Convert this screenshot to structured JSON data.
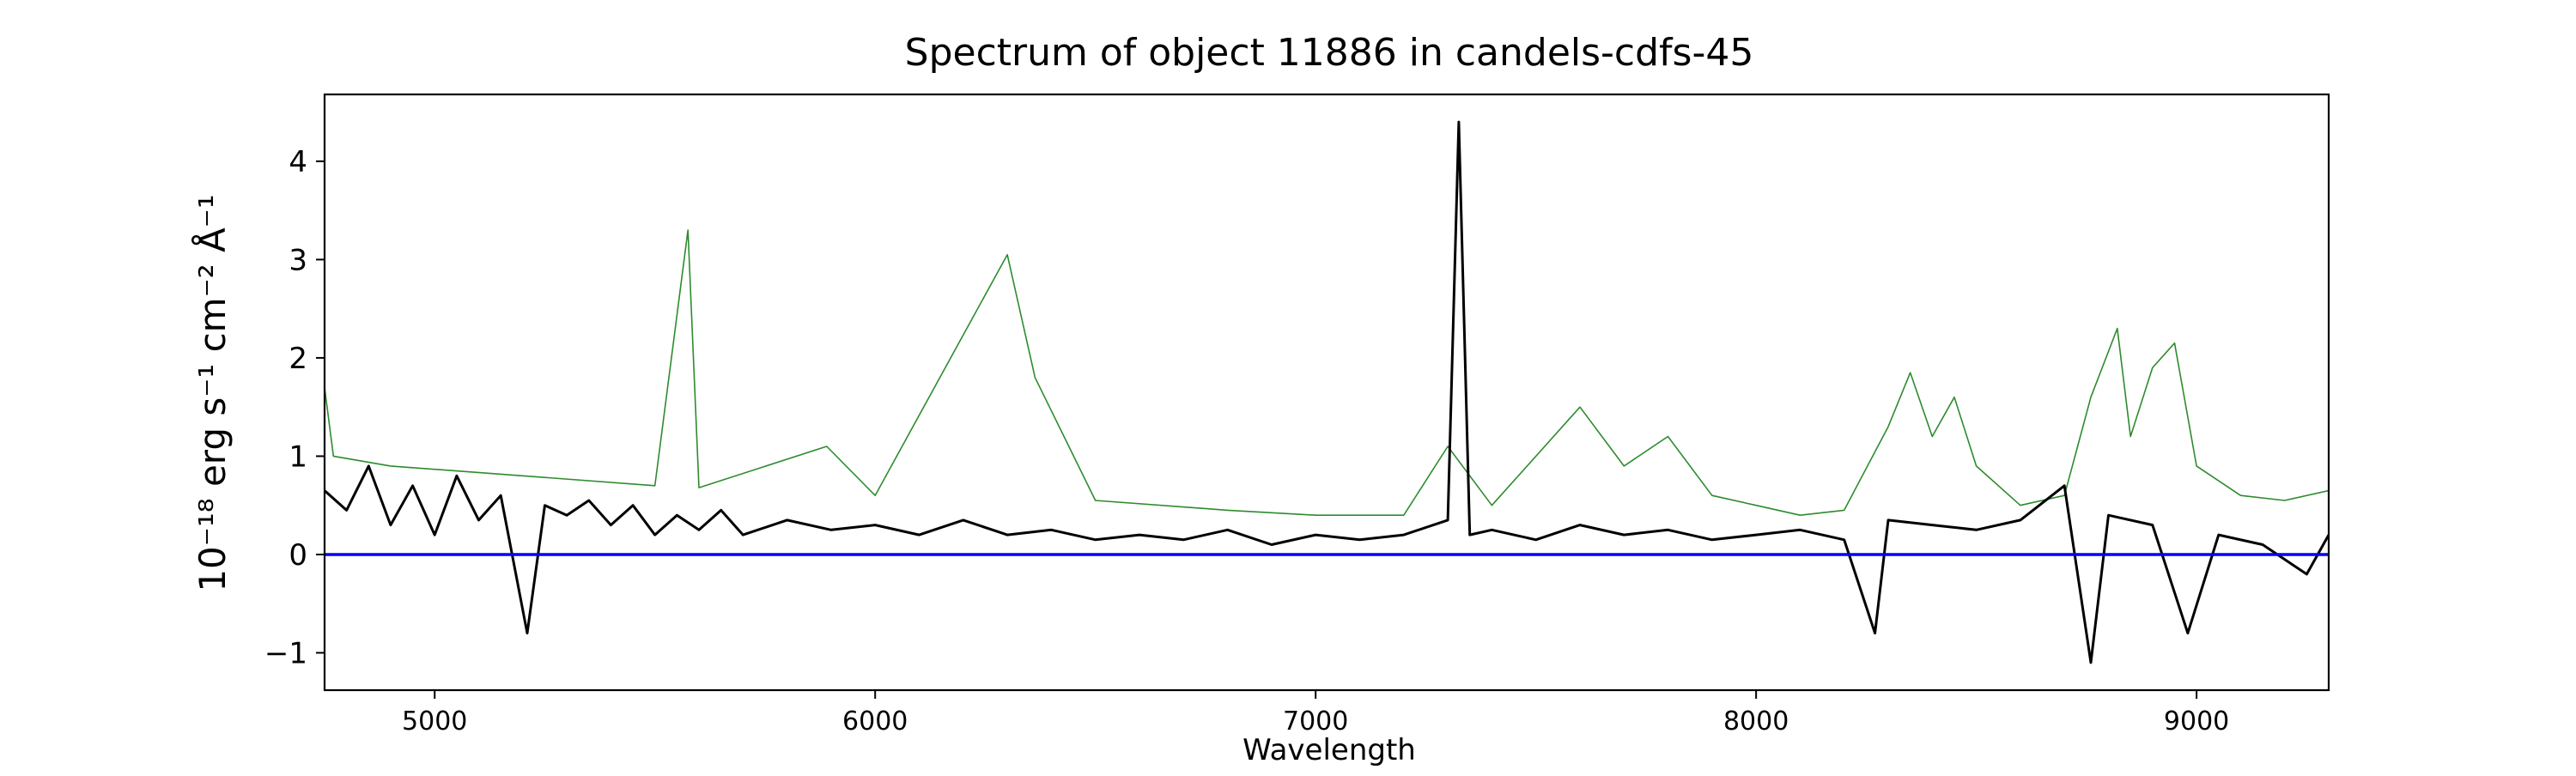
{
  "chart_data": {
    "type": "line",
    "title": "Spectrum of object 11886 in candels-cdfs-45",
    "xlabel": "Wavelength",
    "ylabel": "10⁻¹⁸ erg s⁻¹ cm⁻² Å⁻¹",
    "xlim": [
      4750,
      9300
    ],
    "ylim": [
      -1.38,
      4.68
    ],
    "x_ticks": [
      5000,
      6000,
      7000,
      8000,
      9000
    ],
    "y_ticks": [
      -1,
      0,
      1,
      2,
      3,
      4
    ],
    "grid": false,
    "series": [
      {
        "color": "#000000",
        "values": [
          [
            4750,
            0.65
          ],
          [
            4800,
            0.45
          ],
          [
            4850,
            0.9
          ],
          [
            4900,
            0.3
          ],
          [
            4950,
            0.7
          ],
          [
            5000,
            0.2
          ],
          [
            5050,
            0.8
          ],
          [
            5100,
            0.35
          ],
          [
            5150,
            0.6
          ],
          [
            5210,
            -0.8
          ],
          [
            5250,
            0.5
          ],
          [
            5300,
            0.4
          ],
          [
            5350,
            0.55
          ],
          [
            5400,
            0.3
          ],
          [
            5450,
            0.5
          ],
          [
            5500,
            0.2
          ],
          [
            5550,
            0.4
          ],
          [
            5600,
            0.25
          ],
          [
            5650,
            0.45
          ],
          [
            5700,
            0.2
          ],
          [
            5800,
            0.35
          ],
          [
            5900,
            0.25
          ],
          [
            6000,
            0.3
          ],
          [
            6100,
            0.2
          ],
          [
            6200,
            0.35
          ],
          [
            6300,
            0.2
          ],
          [
            6400,
            0.25
          ],
          [
            6500,
            0.15
          ],
          [
            6600,
            0.2
          ],
          [
            6700,
            0.15
          ],
          [
            6800,
            0.25
          ],
          [
            6900,
            0.1
          ],
          [
            7000,
            0.2
          ],
          [
            7100,
            0.15
          ],
          [
            7200,
            0.2
          ],
          [
            7300,
            0.35
          ],
          [
            7325,
            4.4
          ],
          [
            7350,
            0.2
          ],
          [
            7400,
            0.25
          ],
          [
            7500,
            0.15
          ],
          [
            7600,
            0.3
          ],
          [
            7700,
            0.2
          ],
          [
            7800,
            0.25
          ],
          [
            7900,
            0.15
          ],
          [
            8000,
            0.2
          ],
          [
            8100,
            0.25
          ],
          [
            8200,
            0.15
          ],
          [
            8270,
            -0.8
          ],
          [
            8300,
            0.35
          ],
          [
            8400,
            0.3
          ],
          [
            8500,
            0.25
          ],
          [
            8600,
            0.35
          ],
          [
            8700,
            0.7
          ],
          [
            8760,
            -1.1
          ],
          [
            8800,
            0.4
          ],
          [
            8900,
            0.3
          ],
          [
            8980,
            -0.8
          ],
          [
            9050,
            0.2
          ],
          [
            9150,
            0.1
          ],
          [
            9250,
            -0.2
          ],
          [
            9300,
            0.2
          ]
        ]
      },
      {
        "color": "#2e8b2e",
        "values": [
          [
            4750,
            1.7
          ],
          [
            4770,
            1.0
          ],
          [
            4900,
            0.9
          ],
          [
            5200,
            0.8
          ],
          [
            5500,
            0.7
          ],
          [
            5575,
            3.3
          ],
          [
            5600,
            0.68
          ],
          [
            5890,
            1.1
          ],
          [
            6000,
            0.6
          ],
          [
            6300,
            3.05
          ],
          [
            6363,
            1.8
          ],
          [
            6500,
            0.55
          ],
          [
            6800,
            0.45
          ],
          [
            7000,
            0.4
          ],
          [
            7200,
            0.4
          ],
          [
            7300,
            1.1
          ],
          [
            7400,
            0.5
          ],
          [
            7600,
            1.5
          ],
          [
            7700,
            0.9
          ],
          [
            7800,
            1.2
          ],
          [
            7900,
            0.6
          ],
          [
            8000,
            0.5
          ],
          [
            8100,
            0.4
          ],
          [
            8200,
            0.45
          ],
          [
            8300,
            1.3
          ],
          [
            8350,
            1.85
          ],
          [
            8400,
            1.2
          ],
          [
            8450,
            1.6
          ],
          [
            8500,
            0.9
          ],
          [
            8600,
            0.5
          ],
          [
            8700,
            0.6
          ],
          [
            8760,
            1.6
          ],
          [
            8820,
            2.3
          ],
          [
            8850,
            1.2
          ],
          [
            8900,
            1.9
          ],
          [
            8950,
            2.15
          ],
          [
            9000,
            0.9
          ],
          [
            9100,
            0.6
          ],
          [
            9200,
            0.55
          ],
          [
            9300,
            0.65
          ]
        ]
      },
      {
        "color": "#0000ff",
        "values": [
          [
            4750,
            0
          ],
          [
            9300,
            0
          ]
        ]
      }
    ]
  }
}
